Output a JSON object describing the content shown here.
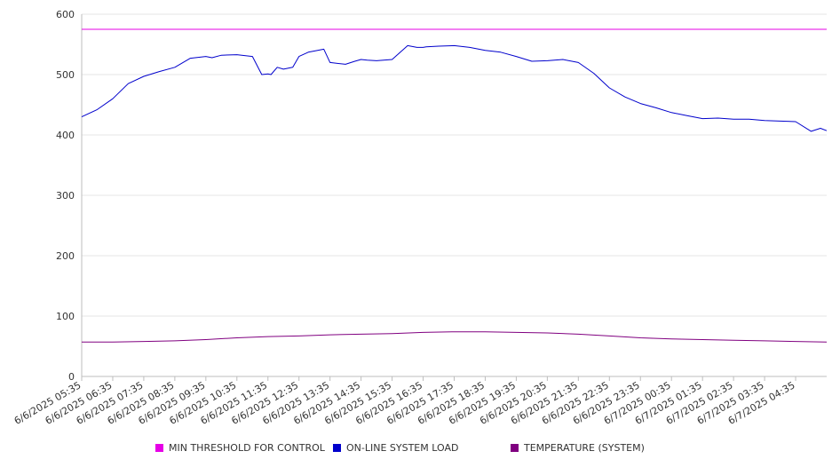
{
  "chart_data": {
    "type": "line",
    "ylim": [
      0,
      600
    ],
    "y_ticks": [
      0,
      100,
      200,
      300,
      400,
      500,
      600
    ],
    "grid": true,
    "legend_position": "bottom",
    "categories": [
      "6/6/2025 05:35",
      "6/6/2025 06:35",
      "6/6/2025 07:35",
      "6/6/2025 08:35",
      "6/6/2025 09:35",
      "6/6/2025 10:35",
      "6/6/2025 11:35",
      "6/6/2025 12:35",
      "6/6/2025 13:35",
      "6/6/2025 14:35",
      "6/6/2025 15:35",
      "6/6/2025 16:35",
      "6/6/2025 17:35",
      "6/6/2025 18:35",
      "6/6/2025 19:35",
      "6/6/2025 20:35",
      "6/6/2025 21:35",
      "6/6/2025 22:35",
      "6/6/2025 23:35",
      "6/7/2025 00:35",
      "6/7/2025 01:35",
      "6/7/2025 02:35",
      "6/7/2025 03:35",
      "6/7/2025 04:35"
    ],
    "series": [
      {
        "name": "MIN THRESHOLD FOR CONTROL",
        "color": "#e600e6",
        "x": [
          0,
          24
        ],
        "values": [
          575,
          575
        ]
      },
      {
        "name": "ON-LINE SYSTEM LOAD",
        "color": "#0000cc",
        "x": [
          0,
          0.5,
          1,
          1.5,
          2,
          2.5,
          3,
          3.5,
          4,
          4.2,
          4.5,
          5,
          5.5,
          5.8,
          6,
          6.1,
          6.3,
          6.5,
          6.8,
          7,
          7.3,
          7.6,
          7.8,
          8,
          8.5,
          8.8,
          9,
          9.2,
          9.5,
          10,
          10.5,
          10.8,
          11,
          11.1,
          11.5,
          12,
          12.5,
          13,
          13.5,
          14,
          14.5,
          15,
          15.5,
          16,
          16.5,
          17,
          17.5,
          18,
          18.5,
          19,
          19.5,
          20,
          20.5,
          21,
          21.5,
          22,
          22.5,
          23,
          23.5,
          23.8,
          24
        ],
        "values": [
          430,
          442,
          460,
          485,
          497,
          505,
          512,
          527,
          530,
          528,
          532,
          533,
          530,
          500,
          501,
          500,
          512,
          509,
          512,
          530,
          537,
          540,
          542,
          520,
          517,
          522,
          525,
          524,
          523,
          525,
          548,
          545,
          545,
          546,
          547,
          548,
          545,
          540,
          537,
          530,
          522,
          523,
          525,
          520,
          502,
          478,
          463,
          452,
          445,
          437,
          432,
          427,
          428,
          426,
          426,
          424,
          423,
          422,
          406,
          411,
          407
        ]
      },
      {
        "name": "TEMPERATURE (SYSTEM)",
        "color": "#800080",
        "x": [
          0,
          1,
          2,
          3,
          4,
          5,
          6,
          7,
          8,
          9,
          10,
          11,
          12,
          13,
          14,
          15,
          16,
          17,
          18,
          19,
          20,
          21,
          22,
          23,
          24
        ],
        "values": [
          57,
          57,
          58,
          59,
          61,
          64,
          66,
          67,
          69,
          70,
          71,
          73,
          74,
          74,
          73,
          72,
          70,
          67,
          64,
          62,
          61,
          60,
          59,
          58,
          57
        ]
      }
    ]
  }
}
